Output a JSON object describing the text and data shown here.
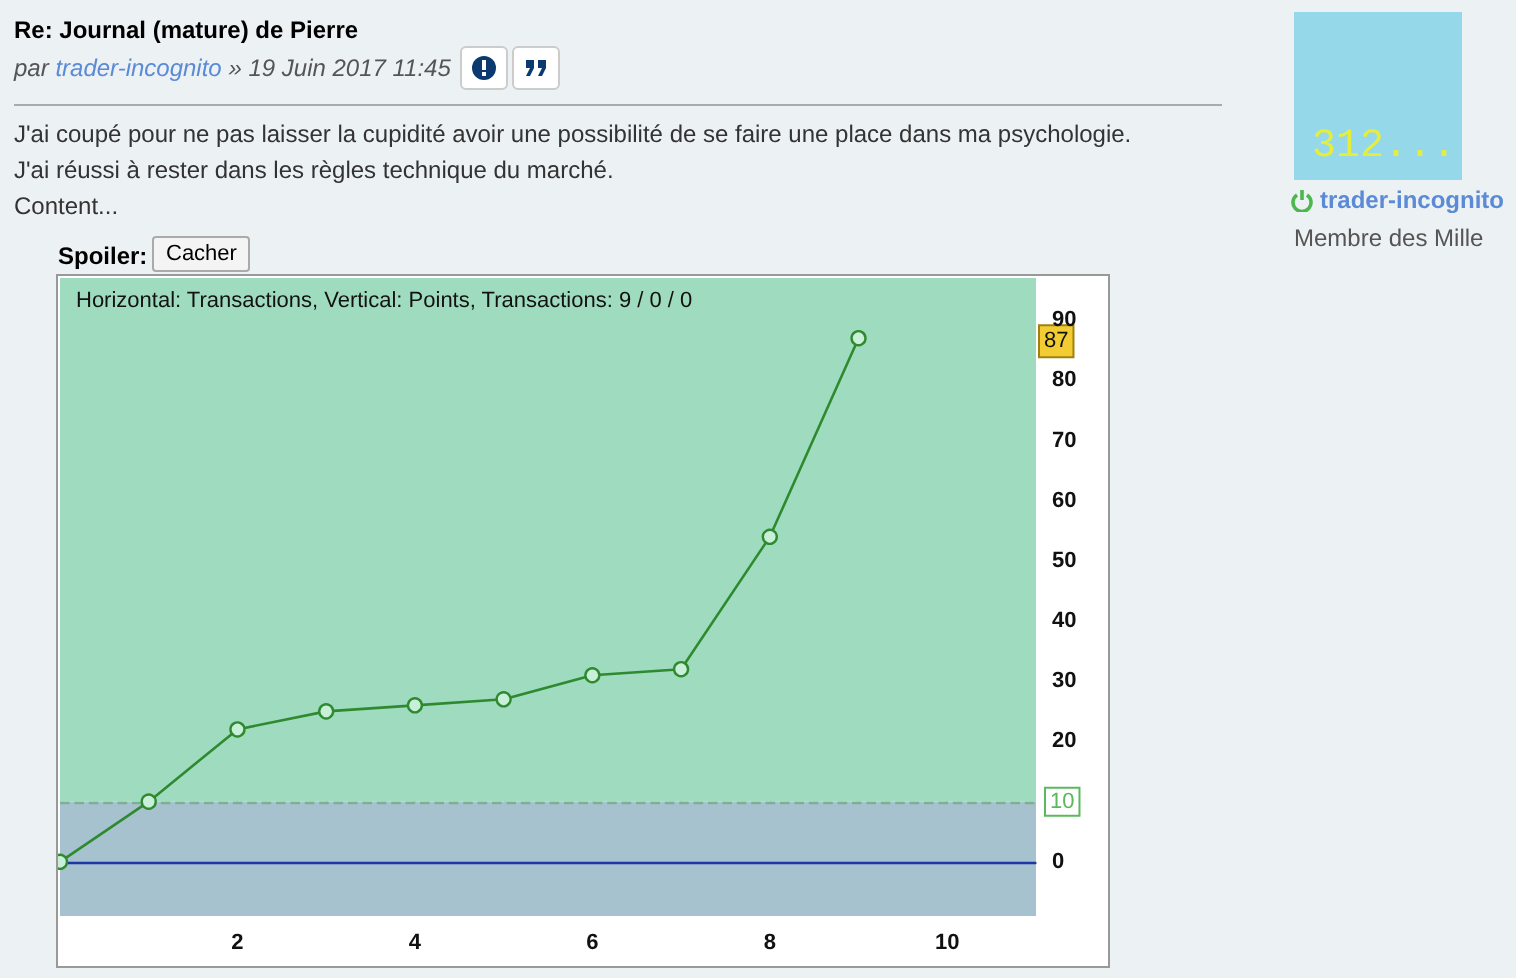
{
  "chart_data": {
    "type": "line",
    "title": "Horizontal: Transactions, Vertical: Points, Transactions: 9 / 0 / 0",
    "x": [
      0,
      1,
      2,
      3,
      4,
      5,
      6,
      7,
      8,
      9
    ],
    "series": [
      {
        "color": "#2f8a2f",
        "values": [
          0,
          10,
          22,
          25,
          26,
          27,
          31,
          32,
          54,
          87
        ]
      }
    ],
    "xlim": [
      0,
      11
    ],
    "xticks": [
      {
        "value": 1,
        "label": null
      },
      2,
      {
        "value": 3,
        "label": null
      },
      4,
      {
        "value": 5,
        "label": null
      },
      6,
      {
        "value": 7,
        "label": null
      },
      8,
      {
        "value": 9,
        "label": null
      },
      10
    ],
    "ylim": [
      -9,
      97
    ],
    "yticks": [
      0,
      20,
      30,
      40,
      50,
      60,
      70,
      80,
      90
    ],
    "grid": true,
    "marker": "circle",
    "line_style": "solid",
    "bands": [
      {
        "axis": "y",
        "from": -9,
        "to": 10,
        "color": "#a6c2cf"
      },
      {
        "axis": "y",
        "from": 10,
        "to": 97,
        "color": "#9fdcbf"
      }
    ],
    "ref_lines": [
      {
        "axis": "y",
        "value": 0,
        "color": "#1f36a8",
        "line_style": "solid"
      },
      {
        "axis": "y",
        "value": 10,
        "label": "10",
        "color": "#7fae94",
        "line_style": "dashed"
      }
    ],
    "annotations": [
      "Re: Journal (mature) de Pierre",
      "par",
      "trader-incognito",
      "» 19 Juin 2017 11:45",
      "J'ai coupé pour ne pas laisser la cupidité avoir une possibilité de se faire une place dans ma psychologie.",
      "J'ai réussi à rester dans les règles technique du marché.",
      "Content...",
      "Spoiler:",
      "Cacher",
      "312...",
      "trader-incognito",
      "Membre des Mille",
      "87"
    ]
  }
}
